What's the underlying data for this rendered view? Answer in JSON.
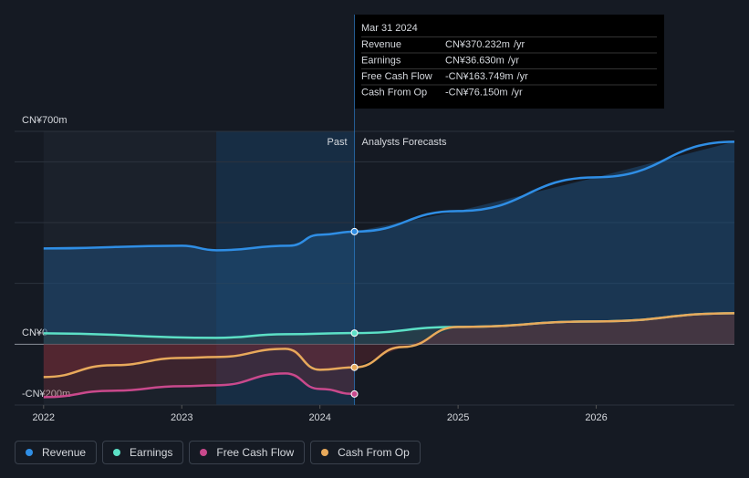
{
  "chart_data": {
    "type": "line",
    "xlim": [
      2021.79,
      2027.0
    ],
    "xticks": [
      2022,
      2023,
      2024,
      2025,
      2026
    ],
    "ylim": [
      -200,
      700
    ],
    "yticks": [
      {
        "value": 700,
        "label": "CN¥700m"
      },
      {
        "value": 600,
        "label": null
      },
      {
        "value": 400,
        "label": null
      },
      {
        "value": 200,
        "label": null
      },
      {
        "value": 0,
        "label": "CN¥0"
      },
      {
        "value": -200,
        "label": "-CN¥200m"
      }
    ],
    "grid": true,
    "past_label": "Past",
    "forecast_label": "Analysts Forecasts",
    "highlight": [
      2023.25,
      2024.25
    ],
    "forecast_start": 2024.25,
    "series": [
      {
        "name": "Revenue",
        "color": "#2f8ee5",
        "x": [
          2022,
          2023,
          2023.25,
          2023.78,
          2024,
          2024.25,
          2025,
          2026,
          2027
        ],
        "values": [
          315,
          324,
          309,
          324,
          360,
          370.232,
          438,
          549,
          666
        ]
      },
      {
        "name": "Earnings",
        "color": "#5ce0c6",
        "x": [
          2022,
          2023.25,
          2023.75,
          2024.25,
          2025,
          2026,
          2027
        ],
        "values": [
          36,
          21,
          33,
          36.63,
          57,
          75,
          102
        ]
      },
      {
        "name": "Free Cash Flow",
        "color": "#c9498c",
        "x": [
          2022,
          2022.5,
          2023,
          2023.25,
          2023.75,
          2024,
          2024.25
        ],
        "values": [
          -174,
          -153,
          -138,
          -135,
          -96,
          -147,
          -163.749
        ]
      },
      {
        "name": "Cash From Op",
        "color": "#e8a95b",
        "x": [
          2022,
          2022.5,
          2023,
          2023.25,
          2023.75,
          2024,
          2024.25,
          2024.6,
          2025,
          2026,
          2027
        ],
        "values": [
          -108,
          -69,
          -45,
          -42,
          -15,
          -84,
          -76.15,
          -9,
          57,
          75,
          102
        ]
      }
    ],
    "tooltip": {
      "title": "Mar 31 2024",
      "rows": [
        {
          "name": "Revenue",
          "value": 370.232,
          "label": "CN¥370.232m",
          "unit": "/yr",
          "color": "#2f8ee5"
        },
        {
          "name": "Earnings",
          "value": 36.63,
          "label": "CN¥36.630m",
          "unit": "/yr",
          "color": "#5ce0c6"
        },
        {
          "name": "Free Cash Flow",
          "value": -163.749,
          "label": "-CN¥163.749m",
          "unit": "/yr",
          "color": "#e5484d"
        },
        {
          "name": "Cash From Op",
          "value": -76.15,
          "label": "-CN¥76.150m",
          "unit": "/yr",
          "color": "#e5484d"
        }
      ]
    }
  }
}
